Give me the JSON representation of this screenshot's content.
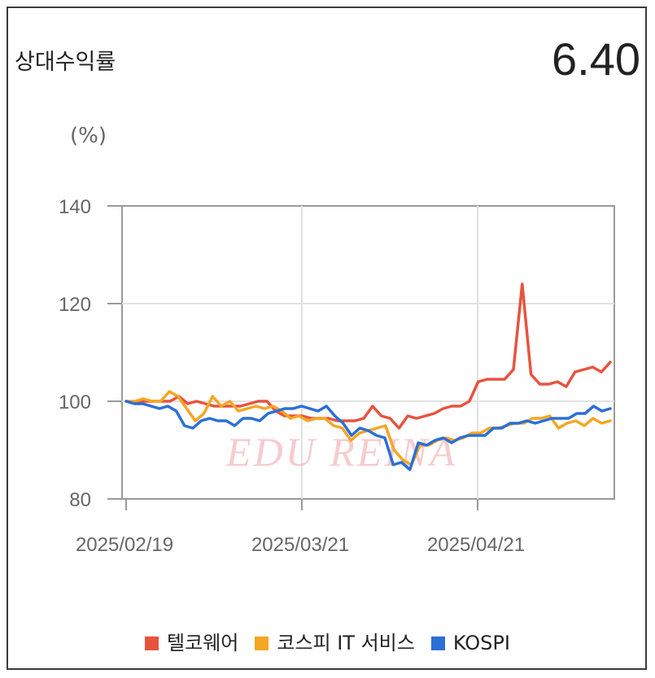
{
  "header": {
    "title": "상대수익률",
    "value": "6.40"
  },
  "chart_data": {
    "type": "line",
    "ylabel": "(%)",
    "ylim": [
      80,
      140
    ],
    "yticks": [
      80,
      100,
      120,
      140
    ],
    "xticks": [
      "2025/02/19",
      "2025/03/21",
      "2025/04/21"
    ],
    "grid": true,
    "legend_position": "bottom",
    "watermark": "EDU REINA",
    "series": [
      {
        "name": "텔코웨어",
        "color": "#e8533f",
        "values": [
          100,
          99.5,
          100,
          100,
          100,
          100,
          101,
          99.5,
          100,
          99.5,
          99,
          99,
          99,
          99,
          99.5,
          100,
          100,
          98,
          97,
          97,
          97,
          96.5,
          96.5,
          96.5,
          96,
          96,
          96,
          96.5,
          99,
          97,
          96.5,
          94.5,
          97,
          96.5,
          97,
          97.5,
          98.5,
          99,
          99,
          100,
          104,
          104.5,
          104.5,
          104.5,
          106.5,
          124,
          105.5,
          103.5,
          103.5,
          104,
          103,
          106,
          106.5,
          107,
          106,
          108
        ]
      },
      {
        "name": "코스피 IT 서비스",
        "color": "#f5a623",
        "values": [
          100,
          100,
          100.5,
          100,
          100,
          102,
          101,
          98.5,
          96,
          97.5,
          101,
          99,
          100,
          98,
          98.5,
          99,
          98.5,
          99,
          98,
          96.5,
          97,
          96,
          96.5,
          96.5,
          95,
          94.5,
          92,
          93.5,
          94,
          94.5,
          95,
          90,
          88,
          87,
          91,
          91,
          92,
          92.5,
          92,
          92.5,
          93.5,
          93.5,
          94.5,
          94.5,
          95,
          95.5,
          95.5,
          96.5,
          96.5,
          97,
          94.5,
          95.5,
          96,
          95,
          96.5,
          95.5,
          96
        ]
      },
      {
        "name": "KOSPI",
        "color": "#2c6fd6",
        "values": [
          100,
          99.5,
          99.5,
          99,
          98.5,
          99,
          98,
          95,
          94.5,
          96,
          96.5,
          96,
          96,
          95,
          96.5,
          96.5,
          96,
          97.5,
          98,
          98.5,
          98.5,
          99,
          98.5,
          98,
          99,
          97,
          95.5,
          93,
          94.5,
          94,
          93,
          92.5,
          87,
          87.5,
          86,
          91.5,
          91,
          92,
          92.5,
          91.5,
          92.5,
          93,
          93,
          93,
          94.5,
          94.5,
          95.5,
          95.5,
          96,
          95.5,
          96,
          96.5,
          96.5,
          96.5,
          97.5,
          97.5,
          99,
          98,
          98.5
        ]
      }
    ]
  }
}
